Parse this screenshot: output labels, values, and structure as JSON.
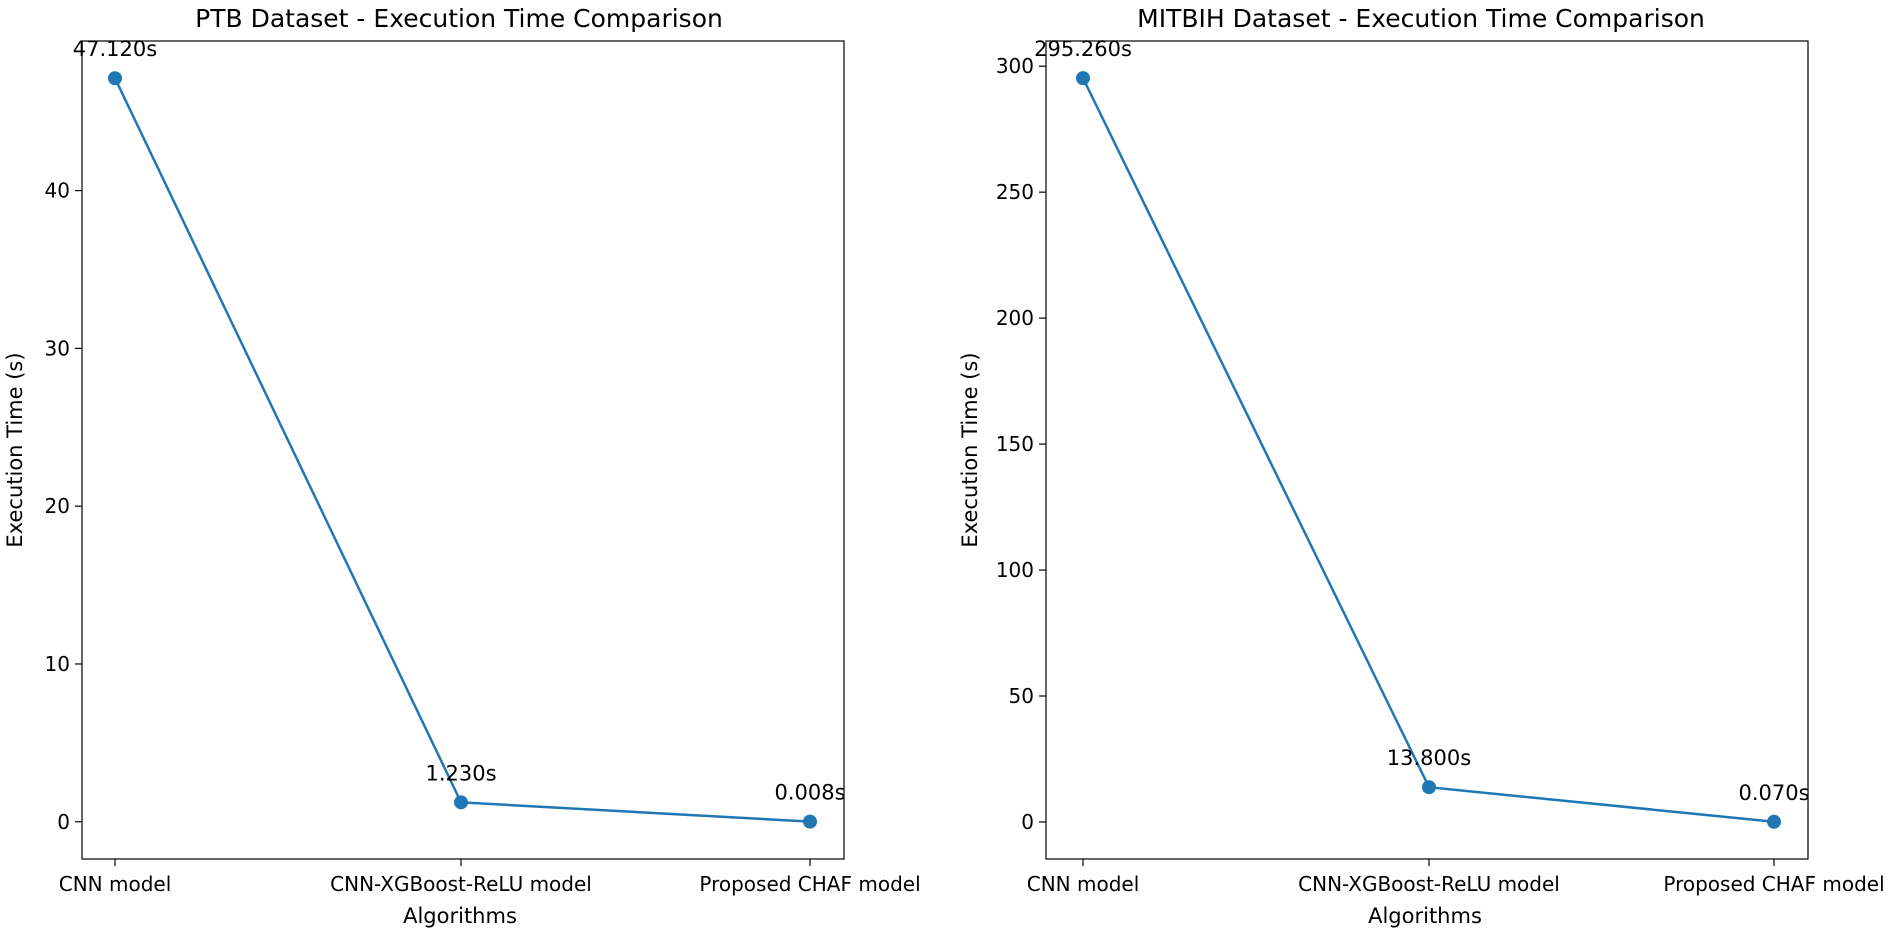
{
  "chart_data": [
    {
      "type": "line",
      "title": "PTB Dataset - Execution Time Comparison",
      "xlabel": "Algorithms",
      "ylabel": "Execution Time (s)",
      "categories": [
        "CNN model",
        "CNN-XGBoost-ReLU model",
        "Proposed CHAF model"
      ],
      "values": [
        47.12,
        1.23,
        0.008
      ],
      "data_labels": [
        "47.120s",
        "1.230s",
        "0.008s"
      ],
      "yticks": [
        0,
        10,
        20,
        30,
        40
      ],
      "ylim": [
        -2.36,
        49.48
      ],
      "grid": false,
      "color": "#1f77b4"
    },
    {
      "type": "line",
      "title": "MITBIH Dataset - Execution Time Comparison",
      "xlabel": "Algorithms",
      "ylabel": "Execution Time (s)",
      "categories": [
        "CNN model",
        "CNN-XGBoost-ReLU model",
        "Proposed CHAF model"
      ],
      "values": [
        295.26,
        13.8,
        0.07
      ],
      "data_labels": [
        "295.260s",
        "13.800s",
        "0.070s"
      ],
      "yticks": [
        0,
        50,
        100,
        150,
        200,
        250,
        300
      ],
      "ylim": [
        -14.7,
        310.0
      ],
      "grid": false,
      "color": "#1f77b4"
    }
  ]
}
